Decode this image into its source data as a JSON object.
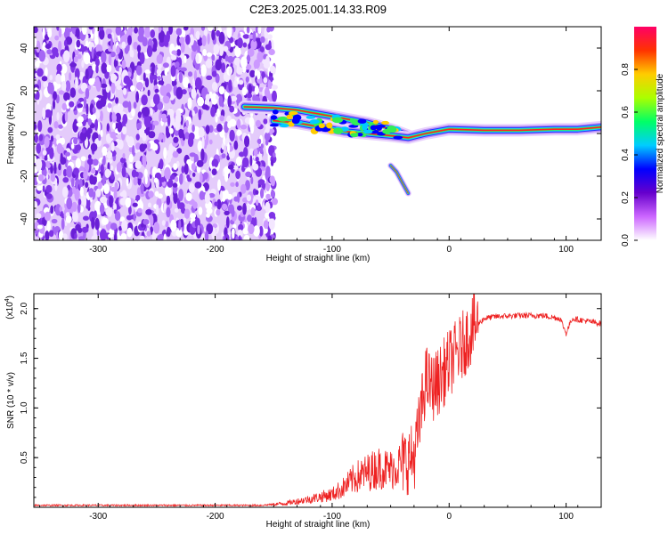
{
  "title": "C2E3.2025.001.14.33.R09",
  "chart_data": [
    {
      "type": "heatmap",
      "xlabel": "Height of straight line (km)",
      "ylabel": "Frequency (Hz)",
      "xlim": [
        -355,
        130
      ],
      "ylim": [
        -50,
        50
      ],
      "x_ticks": [
        "-300",
        "-200",
        "-100",
        "0",
        "100"
      ],
      "y_ticks": [
        "-40",
        "-20",
        "0",
        "20",
        "40"
      ],
      "colorbar": {
        "label": "Normalized spectral amplitude",
        "range": [
          0,
          1
        ],
        "ticks": [
          "0.0",
          "0.2",
          "0.4",
          "0.6",
          "0.8"
        ],
        "colors": [
          "#ffffff",
          "#cc66ff",
          "#6600cc",
          "#0000ff",
          "#00ccff",
          "#00ff66",
          "#aaff00",
          "#ffcc00",
          "#ff3300",
          "#ff0066"
        ]
      },
      "noise_region_x": [
        -355,
        -155
      ],
      "signal_tracks": [
        {
          "x": [
            -175,
            -150,
            -130,
            -110,
            -90,
            -70,
            -50,
            -35
          ],
          "y": [
            12.5,
            12,
            11,
            9,
            7,
            5,
            2,
            -1
          ]
        },
        {
          "x": [
            -150,
            -130,
            -110,
            -90,
            -70,
            -50,
            -35,
            -20,
            0,
            30,
            60,
            90,
            110,
            130
          ],
          "y": [
            6,
            5,
            3,
            1,
            0,
            -1,
            -2,
            0,
            2,
            1.5,
            1.5,
            2,
            2,
            3
          ]
        },
        {
          "x": [
            -50,
            -45,
            -40,
            -35
          ],
          "y": [
            -15,
            -18,
            -23,
            -28
          ]
        }
      ]
    },
    {
      "type": "line",
      "xlabel": "Height of straight line (km)",
      "ylabel": "SNR (10 * v/v)",
      "y_scale_label": "(x10",
      "y_scale_exponent": "4",
      "y_scale_close": ")",
      "xlim": [
        -355,
        130
      ],
      "ylim": [
        0,
        2.15
      ],
      "x_ticks": [
        "-300",
        "-200",
        "-100",
        "0",
        "100"
      ],
      "y_ticks": [
        "0.5",
        "1.0",
        "1.5",
        "2.0"
      ],
      "series_color": "#ee2222",
      "series": [
        {
          "x": [
            -355,
            -300,
            -250,
            -200,
            -160,
            -140,
            -120,
            -100,
            -90,
            -80,
            -70,
            -60,
            -50,
            -40,
            -30,
            -25,
            -20,
            -15,
            -10,
            -5,
            0,
            10,
            20,
            30,
            40,
            60,
            80,
            95,
            100,
            105,
            115,
            130
          ],
          "y": [
            0.02,
            0.02,
            0.02,
            0.02,
            0.02,
            0.04,
            0.08,
            0.13,
            0.2,
            0.3,
            0.35,
            0.4,
            0.38,
            0.45,
            0.5,
            0.85,
            1.3,
            1.2,
            1.25,
            1.35,
            1.45,
            1.6,
            1.8,
            1.9,
            1.92,
            1.93,
            1.93,
            1.9,
            1.75,
            1.9,
            1.88,
            1.85
          ]
        }
      ]
    }
  ]
}
